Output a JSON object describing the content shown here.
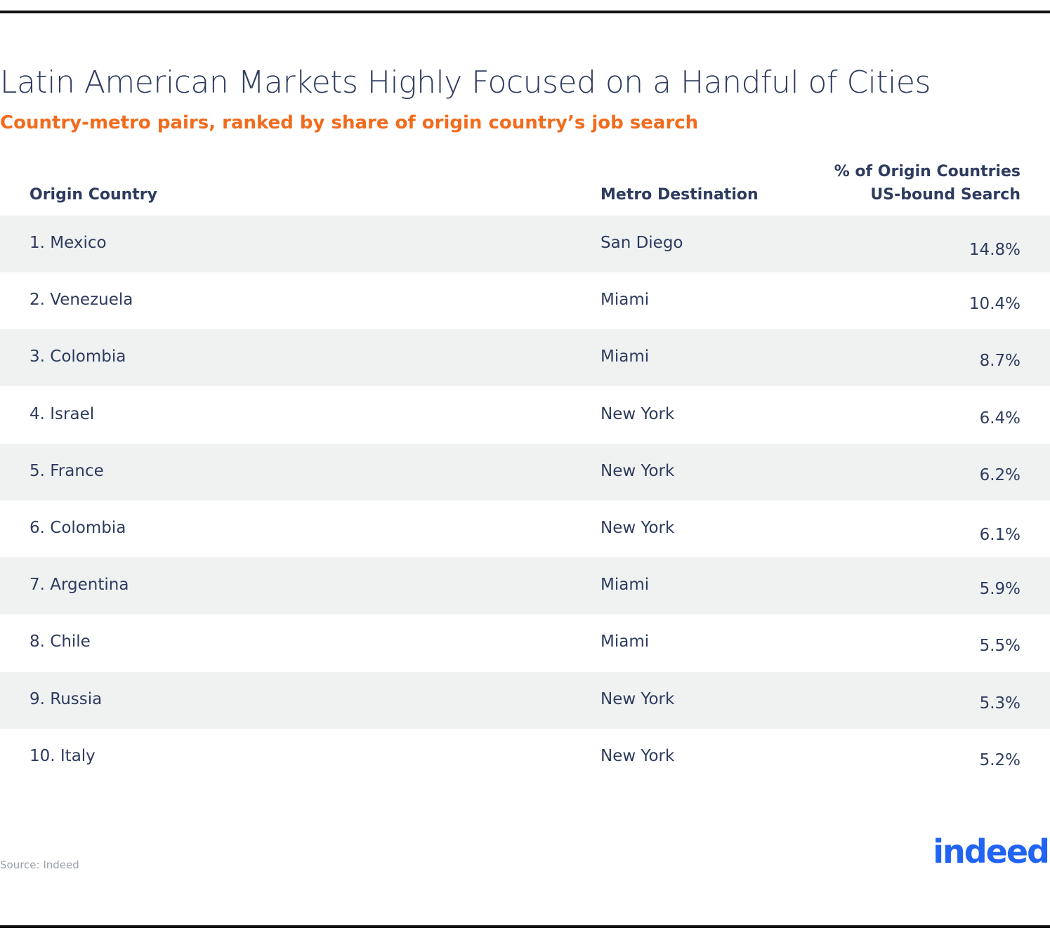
{
  "header": {
    "title": "Latin American Markets Highly Focused on a Handful of Cities",
    "subtitle": "Country-metro pairs, ranked by share of origin country’s job search"
  },
  "table": {
    "headers": [
      "Origin Country",
      "Metro Destination",
      [
        "% of Origin Countries",
        "US-bound Search"
      ]
    ],
    "rows": [
      [
        "1. Mexico",
        "San Diego",
        "14.8%"
      ],
      [
        "2. Venezuela",
        "Miami",
        "10.4%"
      ],
      [
        "3. Colombia",
        "Miami",
        "8.7%"
      ],
      [
        "4. Israel",
        "New York",
        "6.4%"
      ],
      [
        "5. France",
        "New York",
        "6.2%"
      ],
      [
        "6. Colombia",
        "New York",
        "6.1%"
      ],
      [
        "7. Argentina",
        "Miami",
        "5.9%"
      ],
      [
        "8. Chile",
        "Miami",
        "5.5%"
      ],
      [
        "9. Russia",
        "New York",
        "5.3%"
      ],
      [
        "10. Italy",
        "New York",
        "5.2%"
      ]
    ]
  },
  "footer": {
    "source": "Source: Indeed",
    "logo": "indeed"
  }
}
